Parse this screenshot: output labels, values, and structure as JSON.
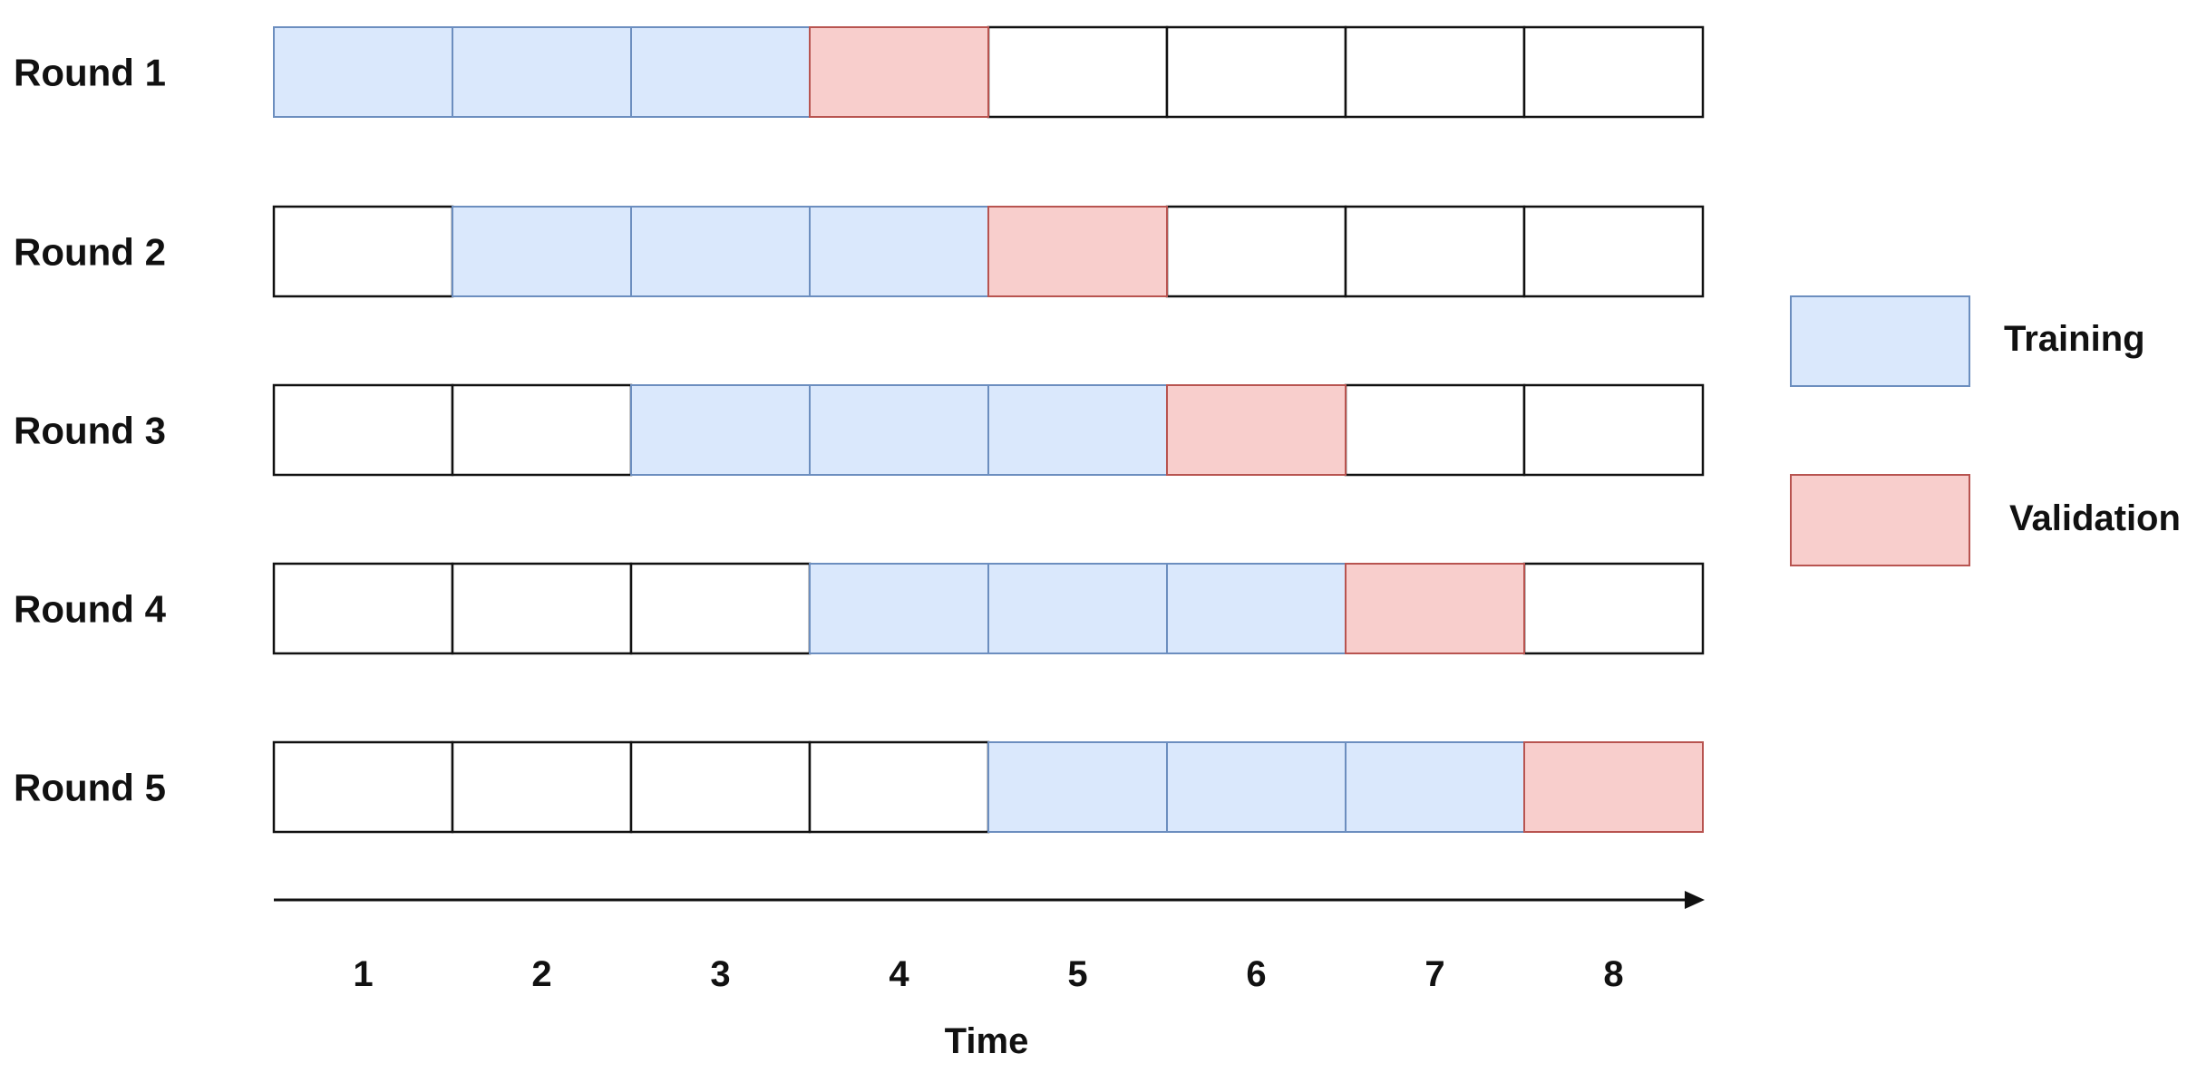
{
  "rounds": [
    {
      "label": "Round 1",
      "cells": [
        "training",
        "training",
        "training",
        "validation",
        "empty",
        "empty",
        "empty",
        "empty"
      ]
    },
    {
      "label": "Round 2",
      "cells": [
        "empty",
        "training",
        "training",
        "training",
        "validation",
        "empty",
        "empty",
        "empty"
      ]
    },
    {
      "label": "Round 3",
      "cells": [
        "empty",
        "empty",
        "training",
        "training",
        "training",
        "validation",
        "empty",
        "empty"
      ]
    },
    {
      "label": "Round 4",
      "cells": [
        "empty",
        "empty",
        "empty",
        "training",
        "training",
        "training",
        "validation",
        "empty"
      ]
    },
    {
      "label": "Round 5",
      "cells": [
        "empty",
        "empty",
        "empty",
        "empty",
        "training",
        "training",
        "training",
        "validation"
      ]
    }
  ],
  "ticks": [
    "1",
    "2",
    "3",
    "4",
    "5",
    "6",
    "7",
    "8"
  ],
  "axis_label": "Time",
  "legend": [
    {
      "key": "training",
      "label": "Training"
    },
    {
      "key": "validation",
      "label": "Validation"
    }
  ],
  "colors": {
    "training_fill": "#dae8fc",
    "training_stroke": "#6c8ebf",
    "validation_fill": "#f8cecc",
    "validation_stroke": "#b85450",
    "empty_fill": "#ffffff",
    "empty_stroke": "#111111",
    "arrow": "#111111"
  }
}
